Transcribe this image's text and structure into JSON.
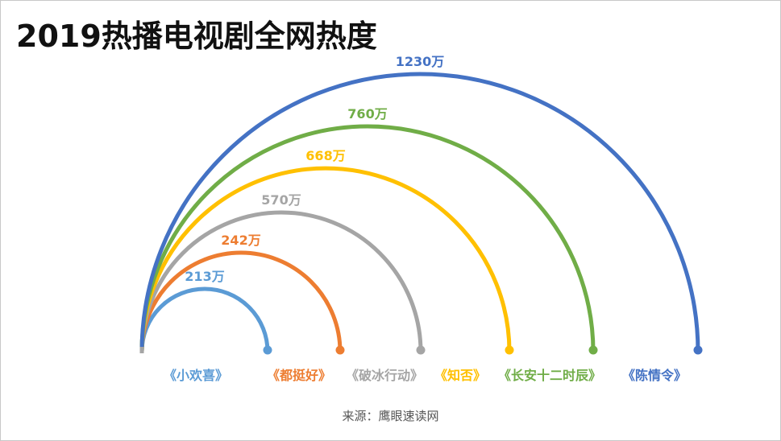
{
  "title": "2019热播电视剧全网热度",
  "source": "来源：鹰眼速读网",
  "chart_data": {
    "type": "arc",
    "title": "2019热播电视剧全网热度",
    "unit": "万",
    "series": [
      {
        "name": "《小欢喜》",
        "value": 213,
        "label": "213万",
        "color": "#5B9BD5"
      },
      {
        "name": "《都挺好》",
        "value": 242,
        "label": "242万",
        "color": "#ED7D31"
      },
      {
        "name": "《破冰行动》",
        "value": 570,
        "label": "570万",
        "color": "#A5A5A5"
      },
      {
        "name": "《知否》",
        "value": 668,
        "label": "668万",
        "color": "#FFC000"
      },
      {
        "name": "《长安十二时辰》",
        "value": 760,
        "label": "760万",
        "color": "#70AD47"
      },
      {
        "name": "《陈情令》",
        "value": 1230,
        "label": "1230万",
        "color": "#4472C4"
      }
    ]
  }
}
